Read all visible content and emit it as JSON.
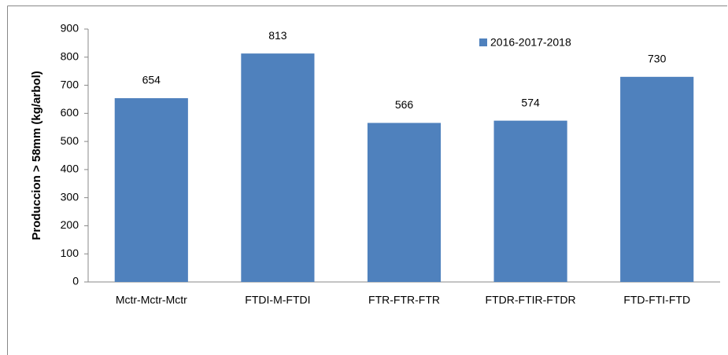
{
  "chart_data": {
    "type": "bar",
    "y_label": "Produccion > 58mm (kg/arbol)",
    "categories": [
      "Mctr-Mctr-Mctr",
      "FTDI-M-FTDI",
      "FTR-FTR-FTR",
      "FTDR-FTIR-FTDR",
      "FTD-FTI-FTD"
    ],
    "series": [
      {
        "name": "2016-2017-2018",
        "color": "#4f81bd",
        "values": [
          654,
          813,
          566,
          574,
          730
        ]
      }
    ],
    "ylim": [
      0,
      900
    ],
    "yticks": [
      0,
      100,
      200,
      300,
      400,
      500,
      600,
      700,
      800,
      900
    ],
    "grid": false
  }
}
